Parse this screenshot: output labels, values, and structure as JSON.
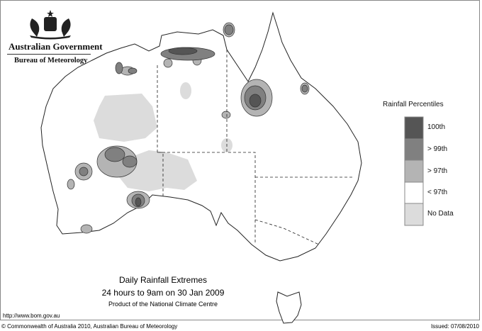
{
  "header": {
    "org": "Australian Government",
    "agency": "Bureau of Meteorology",
    "logo": "coat-of-arms"
  },
  "legend": {
    "title": "Rainfall Percentiles",
    "items": [
      {
        "label": "100th",
        "color": "#555555"
      },
      {
        "label": "> 99th",
        "color": "#808080"
      },
      {
        "label": "> 97th",
        "color": "#b4b4b4"
      },
      {
        "label": "< 97th",
        "color": "#ffffff"
      },
      {
        "label": "No Data",
        "color": "#dcdcdc"
      }
    ]
  },
  "title": {
    "line1": "Daily Rainfall Extremes",
    "line2": "24 hours to 9am on 30 Jan 2009",
    "line3": "Product of the National Climate Centre"
  },
  "footer": {
    "url": "http://www.bom.gov.au",
    "copyright": "© Commonwealth of Australia 2010, Australian Bureau of Meteorology",
    "issued": "Issued: 07/08/2010"
  }
}
